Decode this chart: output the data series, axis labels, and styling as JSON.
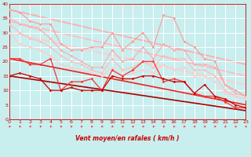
{
  "title": "",
  "xlabel": "Vent moyen/en rafales ( km/h )",
  "xlim": [
    0,
    23
  ],
  "ylim": [
    0,
    40
  ],
  "yticks": [
    0,
    5,
    10,
    15,
    20,
    25,
    30,
    35,
    40
  ],
  "xticks": [
    0,
    1,
    2,
    3,
    4,
    5,
    6,
    7,
    8,
    9,
    10,
    11,
    12,
    13,
    14,
    15,
    16,
    17,
    18,
    19,
    20,
    21,
    22,
    23
  ],
  "background_color": "#c8eeee",
  "grid_color": "#ffffff",
  "arrow_color": "#ee3333",
  "lines_light": [
    {
      "x": [
        0,
        1,
        2,
        3,
        4,
        5,
        6,
        7,
        8,
        9,
        10,
        11,
        12,
        13,
        14,
        15,
        16,
        17,
        18,
        19,
        20,
        21,
        22,
        23
      ],
      "y": [
        38,
        37,
        34,
        33,
        33,
        26,
        24,
        24,
        25,
        25,
        30,
        24,
        27,
        30,
        25,
        36,
        35,
        27,
        25,
        21,
        20,
        12,
        10,
        8
      ],
      "color": "#ff9999",
      "lw": 0.8,
      "marker": "D",
      "ms": 1.8
    },
    {
      "x": [
        0,
        1,
        2,
        3,
        4,
        5,
        6,
        7,
        8,
        9,
        10,
        11,
        12,
        13,
        14,
        15,
        16,
        17,
        18,
        19,
        20,
        21,
        22,
        23
      ],
      "y": [
        35,
        33,
        32,
        31,
        28,
        24,
        22,
        20,
        18,
        18,
        24,
        20,
        21,
        25,
        21,
        26,
        24,
        24,
        19,
        19,
        18,
        12,
        9,
        8
      ],
      "color": "#ffaaaa",
      "lw": 0.8,
      "marker": "D",
      "ms": 1.8
    },
    {
      "x": [
        0,
        1,
        2,
        3,
        4,
        5,
        6,
        7,
        8,
        9,
        10,
        11,
        12,
        13,
        14,
        15,
        16,
        17,
        18,
        19,
        20,
        21,
        22,
        23
      ],
      "y": [
        33,
        30,
        28,
        27,
        25,
        22,
        20,
        19,
        17,
        16,
        21,
        17,
        18,
        20,
        18,
        22,
        21,
        21,
        17,
        17,
        15,
        10,
        8,
        7
      ],
      "color": "#ffbbbb",
      "lw": 0.8,
      "marker": "D",
      "ms": 1.8
    },
    {
      "x": [
        0,
        1,
        2,
        3,
        4,
        5,
        6,
        7,
        8,
        9,
        10,
        11,
        12,
        13,
        14,
        15,
        16,
        17,
        18,
        19,
        20,
        21,
        22,
        23
      ],
      "y": [
        30,
        26,
        25,
        24,
        22,
        19,
        18,
        17,
        16,
        15,
        18,
        15,
        16,
        17,
        16,
        19,
        17,
        18,
        15,
        15,
        13,
        9,
        8,
        7
      ],
      "color": "#ffcccc",
      "lw": 0.8,
      "marker": "D",
      "ms": 1.8
    }
  ],
  "lines_dark": [
    {
      "x": [
        0,
        1,
        2,
        3,
        4,
        5,
        6,
        7,
        8,
        9,
        10,
        11,
        12,
        13,
        14,
        15,
        16,
        17,
        18,
        19,
        20,
        21,
        22,
        23
      ],
      "y": [
        21,
        21,
        19,
        19,
        21,
        10,
        13,
        13,
        14,
        10,
        17,
        15,
        17,
        20,
        20,
        13,
        14,
        13,
        9,
        8,
        8,
        6,
        4,
        4
      ],
      "color": "#ff3333",
      "lw": 0.9,
      "marker": "D",
      "ms": 1.8
    },
    {
      "x": [
        0,
        1,
        2,
        3,
        4,
        5,
        6,
        7,
        8,
        9,
        10,
        11,
        12,
        13,
        14,
        15,
        16,
        17,
        18,
        19,
        20,
        21,
        22,
        23
      ],
      "y": [
        15,
        16,
        15,
        14,
        10,
        10,
        11,
        10,
        10,
        10,
        15,
        14,
        14,
        15,
        15,
        14,
        13,
        13,
        9,
        12,
        8,
        7,
        5,
        4
      ],
      "color": "#cc0000",
      "lw": 0.9,
      "marker": "D",
      "ms": 1.8
    }
  ],
  "trend_lines_light": [
    {
      "x": [
        0,
        23
      ],
      "y": [
        38,
        19
      ],
      "color": "#ffaaaa",
      "lw": 1.2
    },
    {
      "x": [
        0,
        23
      ],
      "y": [
        34,
        15
      ],
      "color": "#ffbbbb",
      "lw": 1.2
    },
    {
      "x": [
        0,
        23
      ],
      "y": [
        30,
        12
      ],
      "color": "#ffcccc",
      "lw": 1.2
    }
  ],
  "trend_lines_dark": [
    {
      "x": [
        0,
        23
      ],
      "y": [
        21,
        5
      ],
      "color": "#ee2222",
      "lw": 1.2
    },
    {
      "x": [
        0,
        23
      ],
      "y": [
        15,
        3
      ],
      "color": "#aa0000",
      "lw": 1.2
    }
  ]
}
